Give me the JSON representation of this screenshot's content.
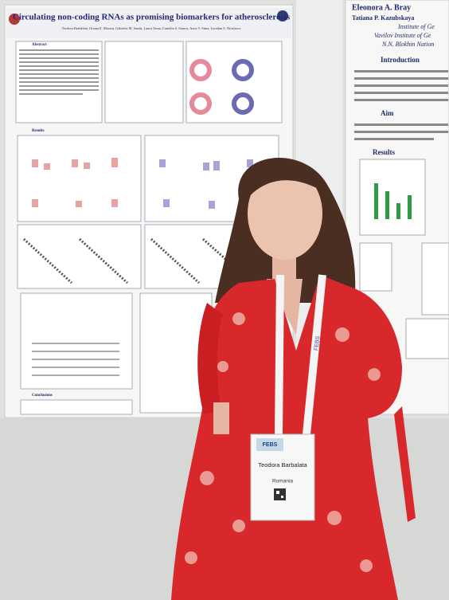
{
  "left_poster": {
    "title": "Circulating non-coding RNAs as promising biomarkers for atherosclerosis",
    "authors": "Teodora Barbălată, Oriana E. Moraru, Gabriela M. Sanda, Laura Toma, Camelia S. Stancu, Anca V. Sima, Loredan S. Niculescu",
    "sections": [
      "Abstract",
      "Results",
      "Conclusions"
    ]
  },
  "right_poster": {
    "authors": [
      "Eleonora A. Bray",
      "Tatiana P. Kazubskaya"
    ],
    "affiliations": [
      "Institute of Ge",
      "Vavilov Institute of Ge",
      "N.N. Blokhin Nation"
    ],
    "sections": [
      "Introduction",
      "Aim",
      "Results"
    ]
  },
  "badge": {
    "event": "FEBS",
    "name": "Teodora Barbalata",
    "country": "Romania"
  }
}
